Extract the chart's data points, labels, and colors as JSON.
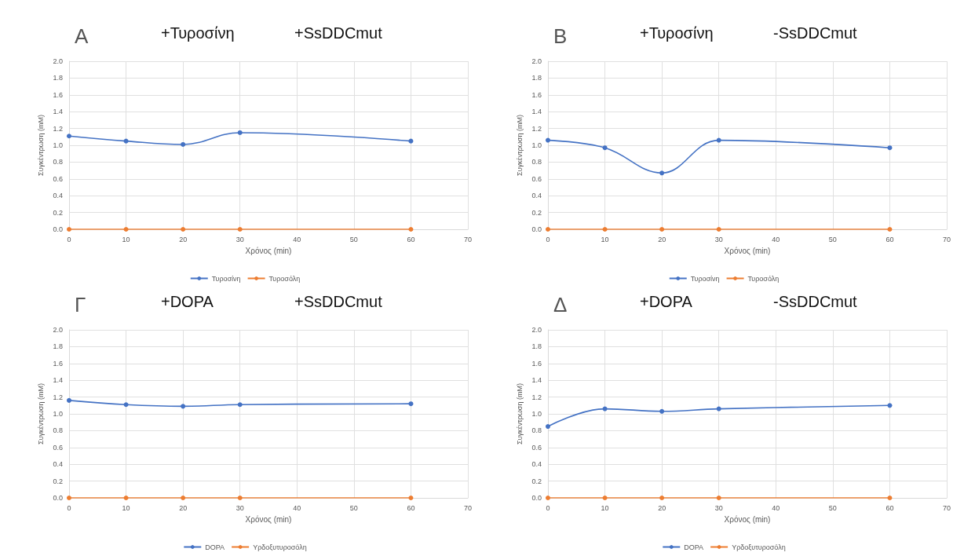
{
  "chart_data": [
    {
      "type": "line",
      "title": "Α",
      "annotations": [
        "+Τυροσίνη",
        "+SsDDCmut"
      ],
      "xlabel": "Χρόνος (min)",
      "ylabel": "Συγκέντρωση (mM)",
      "x": [
        0,
        10,
        20,
        30,
        60
      ],
      "series": [
        {
          "name": "Τυροσίνη",
          "color": "#4472c4",
          "values": [
            1.11,
            1.05,
            1.01,
            1.15,
            1.05
          ]
        },
        {
          "name": "Τυροσόλη",
          "color": "#ed7d31",
          "values": [
            0,
            0,
            0,
            0,
            0
          ]
        }
      ],
      "xlim": [
        0,
        70
      ],
      "xticks": [
        0,
        10,
        20,
        30,
        40,
        50,
        60,
        70
      ],
      "ylim": [
        0,
        2
      ],
      "yticks": [
        {
          "value": 0,
          "label": "0.0"
        },
        0.2,
        0.4,
        0.6,
        0.8,
        {
          "value": 1,
          "label": "1.0"
        },
        1.2,
        1.4,
        1.6,
        1.8,
        {
          "value": 2,
          "label": "2.0"
        }
      ],
      "grid": true,
      "legend": "bottom",
      "marker": "circle",
      "line_style": "solid"
    },
    {
      "type": "line",
      "title": "Β",
      "annotations": [
        "+Τυροσίνη",
        "-SsDDCmut"
      ],
      "xlabel": "Χρόνος (min)",
      "ylabel": "Συγκέντρωση (mM)",
      "x": [
        0,
        10,
        20,
        30,
        60
      ],
      "series": [
        {
          "name": "Τυροσίνη",
          "color": "#4472c4",
          "values": [
            1.06,
            0.97,
            0.67,
            1.06,
            0.97
          ]
        },
        {
          "name": "Τυροσόλη",
          "color": "#ed7d31",
          "values": [
            0,
            0,
            0,
            0,
            0
          ]
        }
      ],
      "xlim": [
        0,
        70
      ],
      "xticks": [
        0,
        10,
        20,
        30,
        40,
        50,
        60,
        70
      ],
      "ylim": [
        0,
        2
      ],
      "yticks": [
        {
          "value": 0,
          "label": "0.0"
        },
        0.2,
        0.4,
        0.6,
        0.8,
        {
          "value": 1,
          "label": "1.0"
        },
        1.2,
        1.4,
        1.6,
        1.8,
        {
          "value": 2,
          "label": "2.0"
        }
      ],
      "grid": true,
      "legend": "bottom",
      "marker": "circle",
      "line_style": "solid"
    },
    {
      "type": "line",
      "title": "Γ",
      "annotations": [
        "+DOPA",
        "+SsDDCmut"
      ],
      "xlabel": "Χρόνος (min)",
      "ylabel": "Συγκέντρωση (mM)",
      "x": [
        0,
        10,
        20,
        30,
        60
      ],
      "series": [
        {
          "name": "DOPA",
          "color": "#4472c4",
          "values": [
            1.16,
            1.11,
            1.09,
            1.11,
            1.12
          ]
        },
        {
          "name": "Υρδοξυτυροσόλη",
          "color": "#ed7d31",
          "values": [
            0,
            0,
            0,
            0,
            0
          ]
        }
      ],
      "xlim": [
        0,
        70
      ],
      "xticks": [
        0,
        10,
        20,
        30,
        40,
        50,
        60,
        70
      ],
      "ylim": [
        0,
        2
      ],
      "yticks": [
        {
          "value": 0,
          "label": "0.0"
        },
        0.2,
        0.4,
        0.6,
        0.8,
        {
          "value": 1,
          "label": "1.0"
        },
        1.2,
        1.4,
        1.6,
        1.8,
        {
          "value": 2,
          "label": "2.0"
        }
      ],
      "grid": true,
      "legend": "bottom",
      "marker": "circle",
      "line_style": "solid"
    },
    {
      "type": "line",
      "title": "Δ",
      "annotations": [
        "+DOPA",
        "-SsDDCmut"
      ],
      "xlabel": "Χρόνος (min)",
      "ylabel": "Συγκέντρωση (mM)",
      "x": [
        0,
        10,
        20,
        30,
        60
      ],
      "series": [
        {
          "name": "DOPA",
          "color": "#4472c4",
          "values": [
            0.85,
            1.06,
            1.03,
            1.06,
            1.1
          ]
        },
        {
          "name": "Υρδοξυτυροσόλη",
          "color": "#ed7d31",
          "values": [
            0,
            0,
            0,
            0,
            0
          ]
        }
      ],
      "xlim": [
        0,
        70
      ],
      "xticks": [
        0,
        10,
        20,
        30,
        40,
        50,
        60,
        70
      ],
      "ylim": [
        0,
        2
      ],
      "yticks": [
        {
          "value": 0,
          "label": "0.0"
        },
        0.2,
        0.4,
        0.6,
        0.8,
        {
          "value": 1,
          "label": "1.0"
        },
        1.2,
        1.4,
        1.6,
        1.8,
        {
          "value": 2,
          "label": "2.0"
        }
      ],
      "grid": true,
      "legend": "bottom",
      "marker": "circle",
      "line_style": "solid"
    }
  ]
}
